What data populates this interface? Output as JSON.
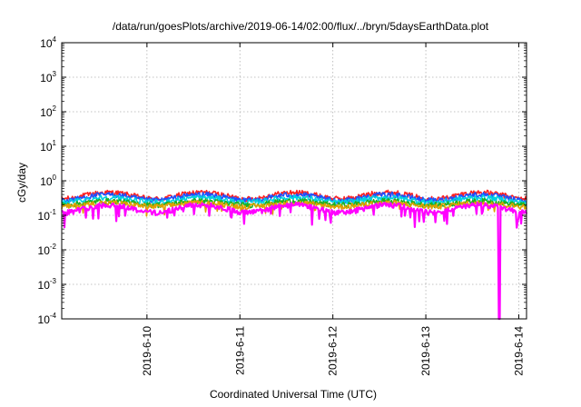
{
  "chart_data": {
    "type": "line",
    "title": "/data/run/goesPlots/archive/2019-06-14/02:00/flux/../bryn/5daysEarthData.plot",
    "xlabel": "Coordinated Universal Time (UTC)",
    "ylabel": "cGy/day",
    "yscale": "log",
    "ylim": [
      0.0001,
      10000
    ],
    "xlim": [
      "2019-06-09 02:00",
      "2019-06-14 02:00"
    ],
    "grid": true,
    "legend": "none",
    "y_ticks": [
      {
        "base": "10",
        "exp": "-4"
      },
      {
        "base": "10",
        "exp": "-3"
      },
      {
        "base": "10",
        "exp": "-2"
      },
      {
        "base": "10",
        "exp": "-1"
      },
      {
        "base": "10",
        "exp": "0"
      },
      {
        "base": "10",
        "exp": "1"
      },
      {
        "base": "10",
        "exp": "2"
      },
      {
        "base": "10",
        "exp": "3"
      },
      {
        "base": "10",
        "exp": "4"
      }
    ],
    "x_ticks": [
      {
        "label": "2019-6-10",
        "time": "2019-06-10 00:00"
      },
      {
        "label": "2019-6-11",
        "time": "2019-06-11 00:00"
      },
      {
        "label": "2019-6-12",
        "time": "2019-06-12 00:00"
      },
      {
        "label": "2019-6-13",
        "time": "2019-06-13 00:00"
      },
      {
        "label": "2019-6-14",
        "time": "2019-06-14 00:00"
      }
    ],
    "series": [
      {
        "color": "#ff2020",
        "baseline": 0.3,
        "peak": 0.46
      },
      {
        "color": "#1f4fff",
        "baseline": 0.27,
        "peak": 0.4
      },
      {
        "color": "#00d0e0",
        "baseline": 0.24,
        "peak": 0.33
      },
      {
        "color": "#1fb01f",
        "baseline": 0.2,
        "peak": 0.26
      },
      {
        "color": "#e0a000",
        "baseline": 0.18,
        "peak": 0.23
      },
      {
        "color": "#ff00ff",
        "baseline": 0.12,
        "peak": 0.2
      }
    ],
    "dropout": {
      "series_color": "#ff00ff",
      "time": "2019-06-13 19:00",
      "value": 0.0001
    }
  }
}
